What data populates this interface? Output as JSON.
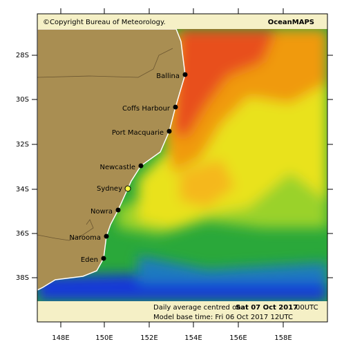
{
  "header": {
    "copyright": "©Copyright Bureau of Meteorology.",
    "product": "OceanMAPS"
  },
  "footer": {
    "line1_prefix": "Daily average centred on",
    "line1_date": "Sat 07 Oct 2017",
    "line1_time": "00UTC",
    "line2": "Model base time: Fri 06 Oct 2017 12UTC"
  },
  "latitude_labels": [
    "28S",
    "30S",
    "32S",
    "34S",
    "36S",
    "38S"
  ],
  "longitude_labels": [
    "148E",
    "150E",
    "152E",
    "154E",
    "156E",
    "158E"
  ],
  "cities": [
    "Ballina",
    "Coffs Harbour",
    "Port Macquarie",
    "Newcastle",
    "Sydney",
    "Nowra",
    "Narooma",
    "Eden"
  ]
}
